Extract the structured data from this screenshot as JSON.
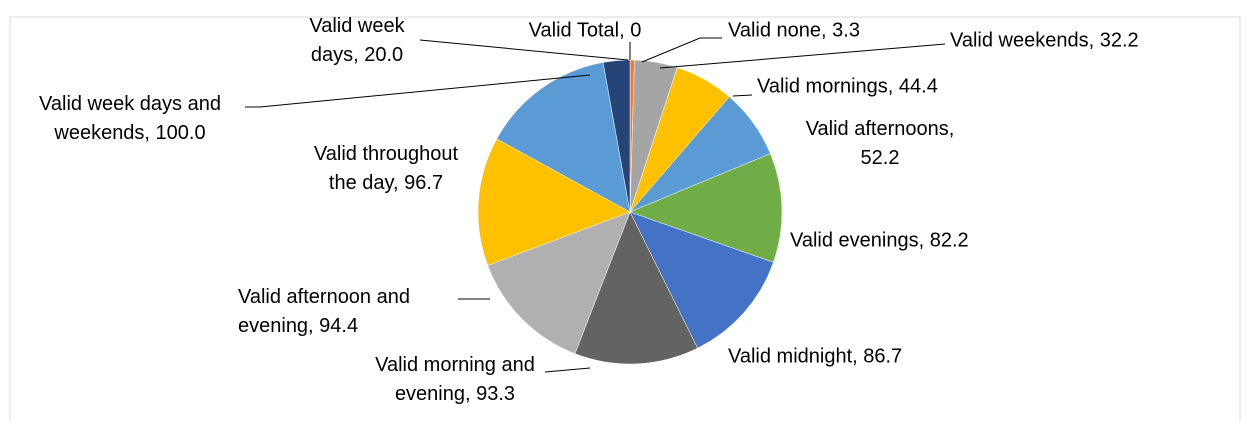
{
  "chart_data": {
    "type": "pie",
    "labels": [
      "Valid Total, 0",
      "Valid none, 3.3",
      "Valid weekends, 32.2",
      "Valid mornings, 44.4",
      "Valid afternoons, 52.2",
      "Valid evenings, 82.2",
      "Valid midnight, 86.7",
      "Valid morning and evening, 93.3",
      "Valid afternoon and evening, 94.4",
      "Valid throughout the day, 96.7",
      "Valid week days and weekends, 100.0",
      "Valid week days, 20.0"
    ],
    "values": [
      0,
      3.3,
      32.2,
      44.4,
      52.2,
      82.2,
      86.7,
      93.3,
      94.4,
      96.7,
      100.0,
      20.0
    ],
    "colors": [
      "#4472c4",
      "#ed7d31",
      "#a5a5a5",
      "#ffc000",
      "#5b9bd5",
      "#70ad47",
      "#4472c4",
      "#636363",
      "#b0b0b0",
      "#ffc000",
      "#5b9bd5",
      "#264478"
    ]
  }
}
